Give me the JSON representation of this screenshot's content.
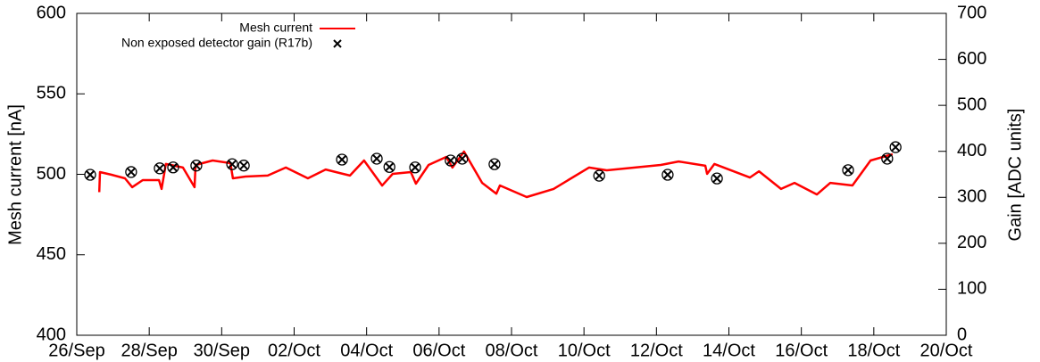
{
  "chart_data": {
    "type": "line",
    "y_label": "Mesh current [nA]",
    "y2_label": "Gain [ADC units]",
    "xlim": [
      0,
      24
    ],
    "xticks": [
      {
        "value": 0,
        "label": "26/Sep"
      },
      {
        "value": 2,
        "label": "28/Sep"
      },
      {
        "value": 4,
        "label": "30/Sep"
      },
      {
        "value": 6,
        "label": "02/Oct"
      },
      {
        "value": 8,
        "label": "04/Oct"
      },
      {
        "value": 10,
        "label": "06/Oct"
      },
      {
        "value": 12,
        "label": "08/Oct"
      },
      {
        "value": 14,
        "label": "10/Oct"
      },
      {
        "value": 16,
        "label": "12/Oct"
      },
      {
        "value": 18,
        "label": "14/Oct"
      },
      {
        "value": 20,
        "label": "16/Oct"
      },
      {
        "value": 22,
        "label": "18/Oct"
      },
      {
        "value": 24,
        "label": "20/Oct"
      }
    ],
    "ylim": [
      400,
      600
    ],
    "yticks": [
      400,
      450,
      500,
      550,
      600
    ],
    "y2lim": [
      0,
      700
    ],
    "y2ticks": [
      0,
      100,
      200,
      300,
      400,
      500,
      600,
      700
    ],
    "legend": "top-left",
    "series": [
      {
        "name": "Mesh current",
        "type": "line",
        "color": "#ff0000",
        "x": [
          0.62,
          0.64,
          0.96,
          1.33,
          1.53,
          1.82,
          2.27,
          2.34,
          2.46,
          2.93,
          3.25,
          3.28,
          3.75,
          4.24,
          4.31,
          4.66,
          5.27,
          5.77,
          6.38,
          6.87,
          7.54,
          7.93,
          8.43,
          8.72,
          9.22,
          9.36,
          9.71,
          10.2,
          10.37,
          10.69,
          11.19,
          11.58,
          11.68,
          12.42,
          13.16,
          14.14,
          14.63,
          16.12,
          16.61,
          17.35,
          17.4,
          17.6,
          18.58,
          18.83,
          19.44,
          19.81,
          20.43,
          20.8,
          21.41,
          21.91,
          22.52
        ],
        "values": [
          488.9,
          501.4,
          499.7,
          497.5,
          492,
          496.4,
          496.4,
          490.9,
          506.4,
          504.2,
          492,
          505.8,
          508.6,
          506.9,
          497.5,
          498.6,
          499.2,
          504.2,
          497.5,
          503,
          499.2,
          508.6,
          493,
          500.3,
          501.4,
          494.2,
          505.8,
          510.8,
          504.2,
          514.1,
          494.7,
          488,
          493.1,
          485.9,
          490.9,
          504.2,
          502.5,
          505.8,
          508,
          505.3,
          500.3,
          506.4,
          498,
          501.9,
          490.9,
          494.7,
          487.5,
          494.7,
          493.1,
          508.6,
          512.5
        ]
      },
      {
        "name": "Non exposed detector gain (R17b)",
        "type": "scatter",
        "color": "#000000",
        "axis": "y2",
        "x": [
          0.37,
          1.5,
          2.29,
          2.66,
          3.3,
          4.29,
          4.61,
          7.32,
          8.28,
          8.63,
          9.34,
          10.32,
          10.64,
          11.53,
          14.42,
          16.31,
          17.67,
          21.29,
          22.37,
          22.6
        ],
        "values": [
          349,
          355,
          363,
          365,
          369,
          372,
          369,
          382,
          384,
          366,
          365,
          380,
          384,
          372,
          347,
          349,
          341,
          359,
          384,
          409
        ]
      }
    ]
  }
}
